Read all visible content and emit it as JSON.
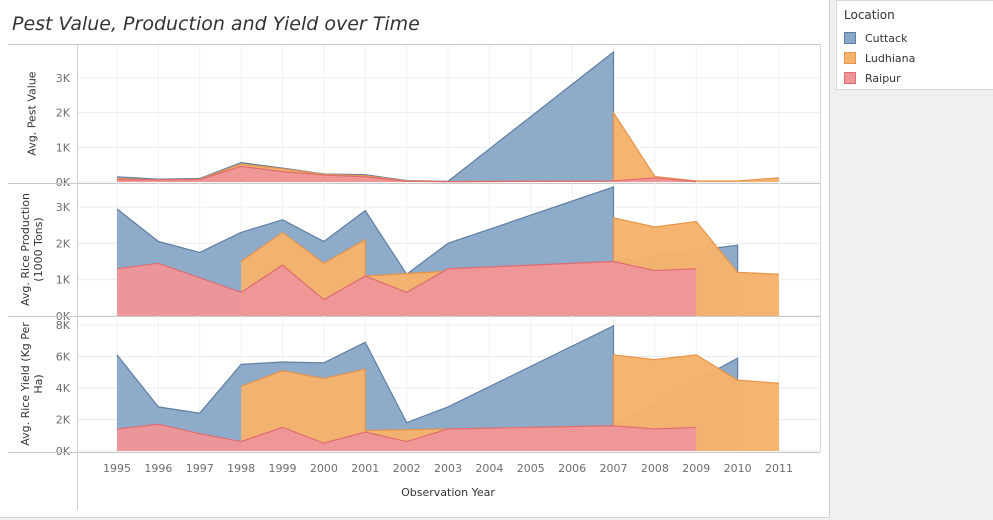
{
  "title": "Pest Value, Production and Yield over Time",
  "legend": {
    "title": "Location",
    "items": [
      {
        "label": "Cuttack",
        "color": "#8aa8c8",
        "stroke": "#5f7ea3"
      },
      {
        "label": "Ludhiana",
        "color": "#f5b36b",
        "stroke": "#e8944a"
      },
      {
        "label": "Raipur",
        "color": "#ee9598",
        "stroke": "#e06c70"
      }
    ]
  },
  "chart_data": {
    "type": "area",
    "stacked": false,
    "x": [
      1995,
      1996,
      1997,
      1998,
      1999,
      2000,
      2001,
      2002,
      2003,
      2004,
      2005,
      2006,
      2007,
      2008,
      2009,
      2010,
      2011
    ],
    "xlabel": "Observation Year",
    "x_tick_labels": [
      "1995",
      "1996",
      "1997",
      "1998",
      "1999",
      "2000",
      "2001",
      "2002",
      "2003",
      "2004",
      "2005",
      "2006",
      "2007",
      "2008",
      "2009",
      "2010",
      "2011"
    ],
    "panels": [
      {
        "ylabel_lines": [
          "Avg. Pest Value"
        ],
        "ylim": [
          0,
          3800
        ],
        "ticks": [
          0,
          1000,
          2000,
          3000
        ],
        "tick_labels": [
          "0K",
          "1K",
          "2K",
          "3K"
        ],
        "series": [
          {
            "name": "Cuttack",
            "points": [
              [
                1995,
                150
              ],
              [
                1996,
                80
              ],
              [
                1997,
                100
              ],
              [
                1998,
                560
              ],
              [
                1999,
                400
              ],
              [
                2000,
                230
              ],
              [
                2001,
                210
              ],
              [
                2002,
                40
              ],
              [
                2003,
                20
              ],
              [
                2007,
                3750
              ],
              [
                2007,
                30
              ]
            ]
          },
          {
            "name": "Ludhiana",
            "points": [
              [
                1995,
                100
              ],
              [
                1996,
                60
              ],
              [
                1997,
                80
              ],
              [
                1998,
                520
              ],
              [
                1999,
                380
              ],
              [
                2000,
                220
              ],
              [
                2001,
                180
              ],
              [
                2002,
                30
              ],
              [
                2003,
                10
              ],
              [
                2007,
                30
              ],
              [
                2007,
                2000
              ],
              [
                2008,
                160
              ],
              [
                2009,
                30
              ],
              [
                2010,
                30
              ],
              [
                2011,
                120
              ]
            ]
          },
          {
            "name": "Raipur",
            "points": [
              [
                1995,
                70
              ],
              [
                1996,
                60
              ],
              [
                1997,
                70
              ],
              [
                1998,
                450
              ],
              [
                1999,
                300
              ],
              [
                2000,
                200
              ],
              [
                2001,
                150
              ],
              [
                2002,
                20
              ],
              [
                2003,
                10
              ],
              [
                2007,
                30
              ],
              [
                2008,
                120
              ],
              [
                2009,
                10
              ]
            ]
          }
        ]
      },
      {
        "ylabel_lines": [
          "Avg. Rice Production",
          "(1000 Tons)"
        ],
        "ylim": [
          0,
          3600
        ],
        "ticks": [
          0,
          1000,
          2000,
          3000
        ],
        "tick_labels": [
          "0K",
          "1K",
          "2K",
          "3K"
        ],
        "series": [
          {
            "name": "Cuttack",
            "points": [
              [
                1995,
                2950
              ],
              [
                1996,
                2050
              ],
              [
                1997,
                1750
              ],
              [
                1998,
                2300
              ],
              [
                1999,
                2650
              ],
              [
                2000,
                2050
              ],
              [
                2001,
                2900
              ],
              [
                2002,
                1150
              ],
              [
                2003,
                2000
              ],
              [
                2007,
                3550
              ],
              [
                2007,
                1500
              ],
              [
                2010,
                1950
              ],
              [
                2010,
                1200
              ]
            ]
          },
          {
            "name": "Ludhiana",
            "points": [
              [
                1998,
                1500
              ],
              [
                1999,
                2300
              ],
              [
                2000,
                1450
              ],
              [
                2001,
                2100
              ],
              [
                2001,
                1100
              ],
              [
                2007,
                1500
              ],
              [
                2007,
                2700
              ],
              [
                2008,
                2450
              ],
              [
                2009,
                2600
              ],
              [
                2010,
                1200
              ],
              [
                2011,
                1150
              ]
            ]
          },
          {
            "name": "Raipur",
            "points": [
              [
                1995,
                1300
              ],
              [
                1996,
                1450
              ],
              [
                1997,
                1050
              ],
              [
                1998,
                650
              ],
              [
                1999,
                1400
              ],
              [
                2000,
                450
              ],
              [
                2001,
                1100
              ],
              [
                2002,
                650
              ],
              [
                2003,
                1300
              ],
              [
                2007,
                1500
              ],
              [
                2008,
                1250
              ],
              [
                2009,
                1300
              ]
            ]
          }
        ]
      },
      {
        "ylabel_lines": [
          "Avg. Rice Yield (Kg Per",
          "Ha)"
        ],
        "ylim": [
          0,
          8000
        ],
        "ticks": [
          0,
          2000,
          4000,
          6000,
          8000
        ],
        "tick_labels": [
          "0K",
          "2K",
          "4K",
          "6K",
          "8K"
        ],
        "series": [
          {
            "name": "Cuttack",
            "points": [
              [
                1995,
                6100
              ],
              [
                1996,
                2800
              ],
              [
                1997,
                2400
              ],
              [
                1998,
                5500
              ],
              [
                1999,
                5650
              ],
              [
                2000,
                5600
              ],
              [
                2001,
                6900
              ],
              [
                2002,
                1800
              ],
              [
                2003,
                2800
              ],
              [
                2007,
                7950
              ],
              [
                2007,
                1600
              ],
              [
                2010,
                5900
              ],
              [
                2010,
                4500
              ]
            ]
          },
          {
            "name": "Ludhiana",
            "points": [
              [
                1998,
                4100
              ],
              [
                1999,
                5100
              ],
              [
                2000,
                4600
              ],
              [
                2001,
                5200
              ],
              [
                2001,
                1300
              ],
              [
                2007,
                1600
              ],
              [
                2007,
                6100
              ],
              [
                2008,
                5800
              ],
              [
                2009,
                6100
              ],
              [
                2010,
                4500
              ],
              [
                2011,
                4300
              ]
            ]
          },
          {
            "name": "Raipur",
            "points": [
              [
                1995,
                1400
              ],
              [
                1996,
                1700
              ],
              [
                1997,
                1100
              ],
              [
                1998,
                600
              ],
              [
                1999,
                1500
              ],
              [
                2000,
                500
              ],
              [
                2001,
                1200
              ],
              [
                2002,
                600
              ],
              [
                2003,
                1400
              ],
              [
                2007,
                1600
              ],
              [
                2008,
                1400
              ],
              [
                2009,
                1500
              ]
            ]
          }
        ]
      }
    ]
  }
}
